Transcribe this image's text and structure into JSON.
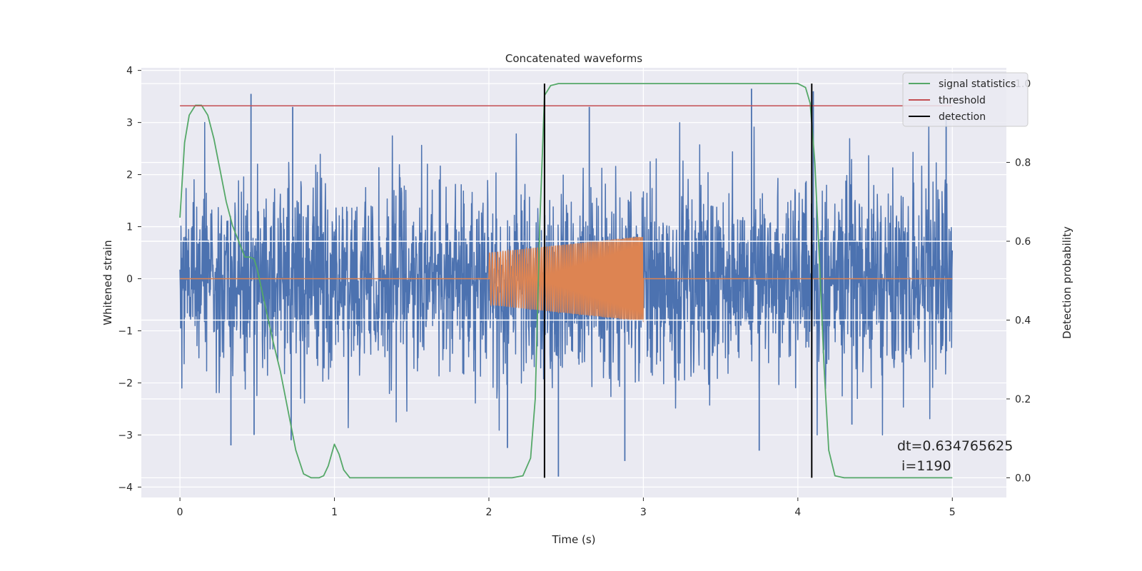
{
  "chart_data": {
    "type": "line",
    "title": "Concatenated waveforms",
    "xlabel": "Time (s)",
    "ylabel": "Whitened strain",
    "ylabel_right": "Detection probability",
    "xlim": [
      -0.25,
      5.35
    ],
    "ylim": [
      -4.2,
      4.05
    ],
    "ylim_right": [
      -0.05,
      1.04
    ],
    "x_ticks": [
      0,
      1,
      2,
      3,
      4,
      5
    ],
    "y_ticks": [
      -4,
      -3,
      -2,
      -1,
      0,
      1,
      2,
      3,
      4
    ],
    "y_ticks_right": [
      0.0,
      0.2,
      0.4,
      0.6,
      0.8,
      1.0
    ],
    "x_tick_labels": [
      "0",
      "1",
      "2",
      "3",
      "4",
      "5"
    ],
    "y_tick_labels": [
      "−4",
      "−3",
      "−2",
      "−1",
      "0",
      "1",
      "2",
      "3",
      "4"
    ],
    "y_tick_labels_right": [
      "0.0",
      "0.2",
      "0.4",
      "0.6",
      "0.8",
      "1.0"
    ],
    "grid": true,
    "legend_position": "top-right",
    "series": [
      {
        "name": "",
        "axis": "left",
        "color": "#4c72b0",
        "description_kind": "noise",
        "x_range": [
          0,
          5
        ],
        "typical_amplitude": 1.3,
        "peak_values": [
          [
            0.46,
            3.55
          ],
          [
            0.73,
            3.3
          ],
          [
            0.48,
            -3.0
          ],
          [
            0.33,
            -3.2
          ],
          [
            0.72,
            -3.1
          ],
          [
            2.65,
            3.3
          ],
          [
            3.7,
            3.65
          ],
          [
            4.1,
            3.6
          ],
          [
            4.96,
            3.1
          ],
          [
            2.45,
            -3.8
          ],
          [
            3.75,
            -3.3
          ],
          [
            2.12,
            -3.25
          ],
          [
            2.88,
            -3.5
          ],
          [
            4.35,
            -2.8
          ]
        ]
      },
      {
        "name": "",
        "axis": "left",
        "color": "#dd8452",
        "description_kind": "chirp",
        "x_range": [
          0,
          5
        ],
        "chirp_start": 2.0,
        "chirp_end": 3.0,
        "amplitude_start": 0.5,
        "amplitude_end": 0.82
      },
      {
        "name": "signal statistics",
        "axis": "right",
        "color": "#55a868",
        "x": [
          0,
          0.03,
          0.06,
          0.1,
          0.14,
          0.18,
          0.22,
          0.26,
          0.3,
          0.34,
          0.38,
          0.42,
          0.45,
          0.48,
          0.5,
          0.55,
          0.6,
          0.65,
          0.7,
          0.75,
          0.8,
          0.85,
          0.9,
          0.93,
          0.96,
          1.0,
          1.03,
          1.06,
          1.1,
          1.15,
          1.5,
          2.0,
          2.15,
          2.22,
          2.27,
          2.3,
          2.33,
          2.36,
          2.4,
          2.45,
          2.5,
          3.0,
          3.5,
          4.0,
          4.05,
          4.08,
          4.11,
          4.14,
          4.17,
          4.2,
          4.24,
          4.3,
          4.5,
          5.0
        ],
        "y": [
          0.66,
          0.85,
          0.92,
          0.945,
          0.945,
          0.92,
          0.86,
          0.78,
          0.7,
          0.64,
          0.6,
          0.56,
          0.56,
          0.555,
          0.53,
          0.44,
          0.35,
          0.27,
          0.17,
          0.07,
          0.01,
          0.0,
          0.0,
          0.005,
          0.03,
          0.085,
          0.06,
          0.02,
          0.0,
          0.0,
          0.0,
          0.0,
          0.0,
          0.005,
          0.05,
          0.2,
          0.65,
          0.97,
          0.995,
          1.0,
          1.0,
          1.0,
          1.0,
          1.0,
          0.99,
          0.95,
          0.8,
          0.55,
          0.28,
          0.07,
          0.005,
          0.0,
          0.0,
          0.0
        ]
      },
      {
        "name": "threshold",
        "axis": "left",
        "color": "#c44e52",
        "x": [
          0,
          5
        ],
        "y": [
          3.32,
          3.32
        ]
      },
      {
        "name": "detection",
        "axis": "right",
        "color": "#000000",
        "kind": "vlines",
        "x": [
          2.36,
          4.09
        ],
        "y_range": [
          0.0,
          1.0
        ]
      }
    ],
    "annotation": {
      "line1": "dt=0.634765625",
      "line2": " i=1190"
    }
  }
}
